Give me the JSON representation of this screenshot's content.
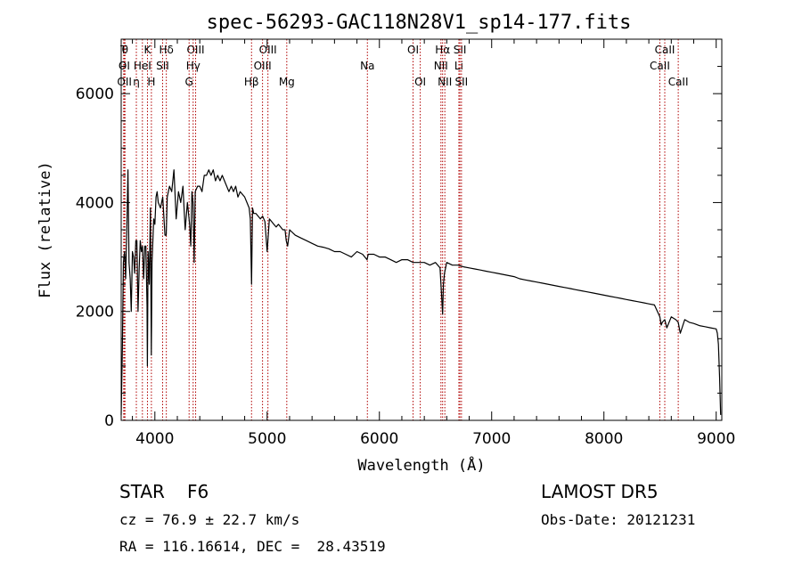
{
  "chart_data": {
    "type": "line",
    "title": "spec-56293-GAC118N28V1_sp14-177.fits",
    "xlabel": "Wavelength (Å)",
    "ylabel": "Flux (relative)",
    "xlim": [
      3700,
      9050
    ],
    "ylim": [
      0,
      7000
    ],
    "xticks": [
      4000,
      5000,
      6000,
      7000,
      8000,
      9000
    ],
    "yticks": [
      0,
      2000,
      4000,
      6000
    ],
    "grid": false,
    "series": [
      {
        "x": [
          3700,
          3710,
          3720,
          3730,
          3740,
          3750,
          3760,
          3770,
          3780,
          3790,
          3800,
          3810,
          3820,
          3830,
          3840,
          3850,
          3860,
          3870,
          3880,
          3890,
          3900,
          3910,
          3920,
          3930,
          3933,
          3940,
          3950,
          3960,
          3968,
          3975,
          3990,
          4000,
          4010,
          4020,
          4030,
          4050,
          4070,
          4090,
          4101,
          4110,
          4130,
          4150,
          4170,
          4190,
          4210,
          4230,
          4250,
          4270,
          4290,
          4310,
          4320,
          4330,
          4340,
          4350,
          4360,
          4380,
          4400,
          4420,
          4440,
          4460,
          4480,
          4500,
          4520,
          4540,
          4560,
          4580,
          4600,
          4620,
          4640,
          4660,
          4680,
          4700,
          4720,
          4740,
          4760,
          4780,
          4800,
          4820,
          4840,
          4850,
          4861,
          4870,
          4880,
          4900,
          4920,
          4940,
          4960,
          4980,
          5000,
          5020,
          5040,
          5060,
          5080,
          5100,
          5120,
          5140,
          5160,
          5170,
          5183,
          5200,
          5250,
          5300,
          5350,
          5400,
          5450,
          5500,
          5550,
          5600,
          5650,
          5700,
          5750,
          5800,
          5850,
          5890,
          5900,
          5950,
          6000,
          6050,
          6100,
          6150,
          6200,
          6250,
          6300,
          6350,
          6400,
          6450,
          6500,
          6540,
          6555,
          6563,
          6570,
          6580,
          6600,
          6650,
          6700,
          6750,
          6800,
          6850,
          6900,
          6950,
          7000,
          7050,
          7100,
          7150,
          7200,
          7250,
          7300,
          7350,
          7400,
          7450,
          7500,
          7550,
          7600,
          7650,
          7700,
          7750,
          7800,
          7850,
          7900,
          7950,
          8000,
          8050,
          8100,
          8150,
          8200,
          8250,
          8300,
          8350,
          8400,
          8450,
          8498,
          8510,
          8520,
          8542,
          8560,
          8600,
          8640,
          8662,
          8680,
          8720,
          8760,
          8800,
          8850,
          8900,
          8950,
          9000,
          9010,
          9020,
          9030,
          9040
        ],
        "values": [
          100,
          1300,
          2900,
          3100,
          2600,
          3500,
          4600,
          2900,
          2600,
          2000,
          3100,
          3000,
          2700,
          3300,
          3300,
          2000,
          2800,
          3300,
          3100,
          3200,
          2600,
          3200,
          3200,
          2100,
          1000,
          3100,
          2500,
          3900,
          1200,
          2900,
          3700,
          3600,
          4100,
          4200,
          4000,
          3900,
          4100,
          3400,
          3400,
          4100,
          4300,
          4200,
          4600,
          3700,
          4200,
          4000,
          4300,
          3500,
          4000,
          3600,
          3200,
          4200,
          4000,
          2900,
          4200,
          4300,
          4300,
          4200,
          4500,
          4500,
          4600,
          4500,
          4600,
          4400,
          4500,
          4400,
          4500,
          4400,
          4300,
          4200,
          4300,
          4200,
          4300,
          4100,
          4200,
          4150,
          4100,
          4000,
          3900,
          3700,
          2500,
          3900,
          3800,
          3800,
          3750,
          3700,
          3750,
          3650,
          3100,
          3700,
          3650,
          3600,
          3550,
          3600,
          3550,
          3500,
          3500,
          3300,
          3200,
          3500,
          3400,
          3350,
          3300,
          3250,
          3200,
          3180,
          3150,
          3100,
          3100,
          3050,
          3000,
          3100,
          3050,
          2950,
          3050,
          3050,
          3000,
          3000,
          2950,
          2900,
          2950,
          2950,
          2900,
          2900,
          2900,
          2850,
          2900,
          2800,
          2250,
          1950,
          2500,
          2700,
          2900,
          2850,
          2850,
          2820,
          2800,
          2780,
          2760,
          2740,
          2720,
          2700,
          2680,
          2660,
          2640,
          2600,
          2580,
          2560,
          2540,
          2520,
          2500,
          2480,
          2460,
          2440,
          2420,
          2400,
          2380,
          2360,
          2340,
          2320,
          2300,
          2280,
          2260,
          2240,
          2220,
          2200,
          2180,
          2160,
          2140,
          2120,
          1900,
          1750,
          1800,
          1850,
          1700,
          1900,
          1850,
          1800,
          1600,
          1850,
          1800,
          1780,
          1740,
          1720,
          1700,
          1680,
          1600,
          1400,
          800,
          100
        ]
      }
    ],
    "lines": [
      {
        "label": "T",
        "x": 3722,
        "row": 0
      },
      {
        "label": "θ",
        "x": 3734,
        "row": 0
      },
      {
        "label": "OI",
        "x": 3727,
        "row": 1
      },
      {
        "label": "OII",
        "x": 3729,
        "row": 2
      },
      {
        "label": "K",
        "x": 3934,
        "row": 0
      },
      {
        "label": "HeI",
        "x": 3889,
        "row": 1
      },
      {
        "label": "η",
        "x": 3835,
        "row": 2
      },
      {
        "label": "H",
        "x": 3969,
        "row": 2
      },
      {
        "label": "Hδ",
        "x": 4102,
        "row": 0
      },
      {
        "label": "SII",
        "x": 4069,
        "row": 1
      },
      {
        "label": "OIII",
        "x": 4363,
        "row": 0
      },
      {
        "label": "Hγ",
        "x": 4341,
        "row": 1
      },
      {
        "label": "G",
        "x": 4305,
        "row": 2
      },
      {
        "label": "OIII",
        "x": 5007,
        "row": 0
      },
      {
        "label": "OIII",
        "x": 4959,
        "row": 1
      },
      {
        "label": "Hβ",
        "x": 4861,
        "row": 2
      },
      {
        "label": "Mg",
        "x": 5175,
        "row": 2
      },
      {
        "label": "Na",
        "x": 5893,
        "row": 1
      },
      {
        "label": "OI",
        "x": 6300,
        "row": 0
      },
      {
        "label": "OI",
        "x": 6364,
        "row": 2
      },
      {
        "label": "Hα",
        "x": 6563,
        "row": 0
      },
      {
        "label": "SII",
        "x": 6717,
        "row": 0
      },
      {
        "label": "NII",
        "x": 6548,
        "row": 1
      },
      {
        "label": "Li",
        "x": 6708,
        "row": 1
      },
      {
        "label": "NII",
        "x": 6583,
        "row": 2
      },
      {
        "label": "SII",
        "x": 6731,
        "row": 2
      },
      {
        "label": "CaII",
        "x": 8542,
        "row": 0
      },
      {
        "label": "CaII",
        "x": 8498,
        "row": 1
      },
      {
        "label": "CaII",
        "x": 8662,
        "row": 2
      }
    ]
  },
  "info": {
    "class": "STAR",
    "subclass": "F6",
    "survey": "LAMOST DR5",
    "cz": "cz = 76.9 ± 22.7 km/s",
    "obs_date": "Obs-Date: 20121231",
    "coords": "RA = 116.16614, DEC =  28.43519"
  },
  "colors": {
    "spectrum": "#000000",
    "line_markers": "#b00000",
    "axis": "#000000"
  }
}
